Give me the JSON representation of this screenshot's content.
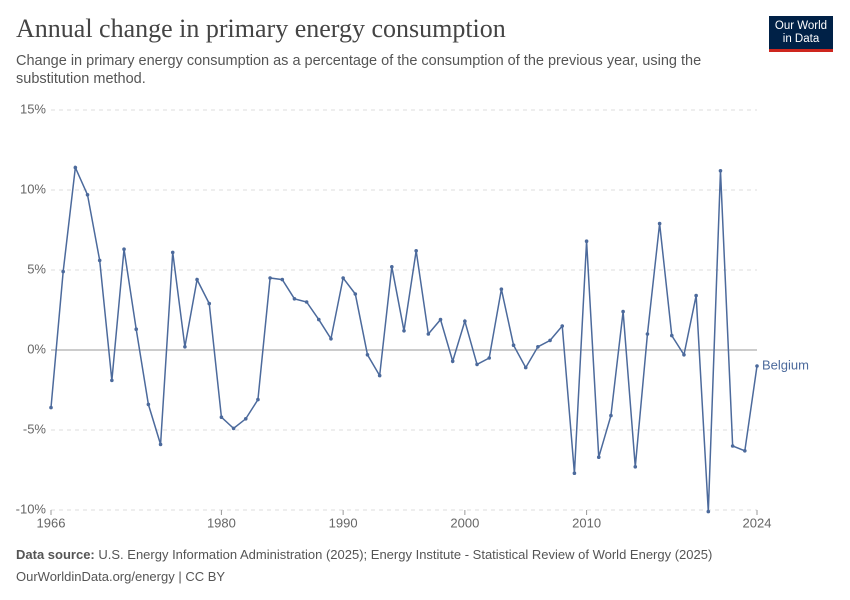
{
  "chart_data": {
    "type": "line",
    "title": "Annual change in primary energy consumption",
    "subtitle": "Change in primary energy consumption as a percentage of the consumption of the previous year, using the substitution method.",
    "logo": [
      "Our World",
      "in Data"
    ],
    "source_label": "Data source:",
    "source": "U.S. Energy Information Administration (2025); Energy Institute - Statistical Review of World Energy (2025)",
    "footer": "OurWorldinData.org/energy | CC BY",
    "x": [
      1966,
      1967,
      1968,
      1969,
      1970,
      1971,
      1972,
      1973,
      1974,
      1975,
      1976,
      1977,
      1978,
      1979,
      1980,
      1981,
      1982,
      1983,
      1984,
      1985,
      1986,
      1987,
      1988,
      1989,
      1990,
      1991,
      1992,
      1993,
      1994,
      1995,
      1996,
      1997,
      1998,
      1999,
      2000,
      2001,
      2002,
      2003,
      2004,
      2005,
      2006,
      2007,
      2008,
      2009,
      2010,
      2011,
      2012,
      2013,
      2014,
      2015,
      2016,
      2017,
      2018,
      2019,
      2020,
      2021,
      2022,
      2023,
      2024
    ],
    "series": [
      {
        "name": "Belgium",
        "color": "#4c6a9c",
        "values": [
          -3.6,
          4.9,
          11.4,
          9.7,
          5.6,
          -1.9,
          6.3,
          1.3,
          -3.4,
          -5.9,
          6.1,
          0.2,
          4.4,
          2.9,
          -4.2,
          -4.9,
          -4.3,
          -3.1,
          4.5,
          4.4,
          3.2,
          3.0,
          1.9,
          0.7,
          4.5,
          3.5,
          -0.3,
          -1.6,
          5.2,
          1.2,
          6.2,
          1.0,
          1.9,
          -0.7,
          1.8,
          -0.9,
          -0.5,
          3.8,
          0.3,
          -1.1,
          0.2,
          0.6,
          1.5,
          -7.7,
          6.8,
          -6.7,
          -4.1,
          2.4,
          -7.3,
          1.0,
          7.9,
          0.9,
          -0.3,
          3.4,
          -10.1,
          11.2,
          -6.0,
          -6.3,
          -1.0
        ]
      }
    ],
    "xlim": [
      1966,
      2024
    ],
    "xticks": [
      1966,
      1980,
      1990,
      2000,
      2010,
      2024
    ],
    "ylim": [
      -10,
      15
    ],
    "yticks": [
      {
        "value": -10,
        "label": "-10%"
      },
      {
        "value": -5,
        "label": "-5%"
      },
      {
        "value": 0,
        "label": "0%"
      },
      {
        "value": 5,
        "label": "5%"
      },
      {
        "value": 10,
        "label": "10%"
      },
      {
        "value": 15,
        "label": "15%"
      }
    ],
    "grid": true
  }
}
